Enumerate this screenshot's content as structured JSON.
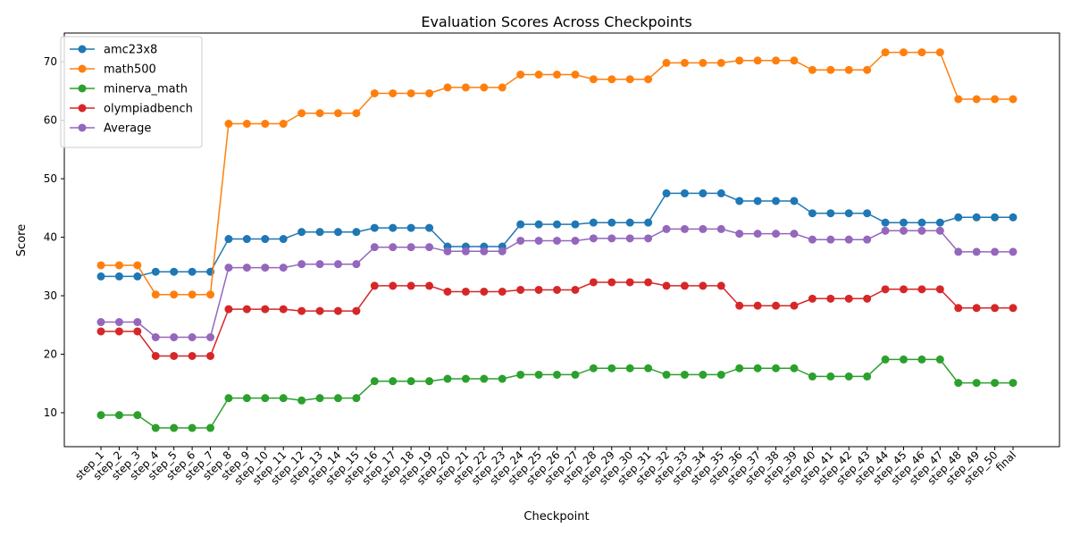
{
  "chart_data": {
    "type": "line",
    "title": "Evaluation Scores Across Checkpoints",
    "xlabel": "Checkpoint",
    "ylabel": "Score",
    "ylim": [
      4.2,
      74.9
    ],
    "yticks": [
      10,
      20,
      30,
      40,
      50,
      60,
      70
    ],
    "grid": false,
    "legend_position": "top-left",
    "categories": [
      "step_1",
      "step_2",
      "step_3",
      "step_4",
      "step_5",
      "step_6",
      "step_7",
      "step_8",
      "step_9",
      "step_10",
      "step_11",
      "step_12",
      "step_13",
      "step_14",
      "step_15",
      "step_16",
      "step_17",
      "step_18",
      "step_19",
      "step_20",
      "step_21",
      "step_22",
      "step_23",
      "step_24",
      "step_25",
      "step_26",
      "step_27",
      "step_28",
      "step_29",
      "step_30",
      "step_31",
      "step_32",
      "step_33",
      "step_34",
      "step_35",
      "step_36",
      "step_37",
      "step_38",
      "step_39",
      "step_40",
      "step_41",
      "step_42",
      "step_43",
      "step_44",
      "step_45",
      "step_46",
      "step_47",
      "step_48",
      "step_49",
      "step_50",
      "final"
    ],
    "series": [
      {
        "name": "amc23x8",
        "color": "#1f77b4",
        "values": [
          33.3,
          33.3,
          33.3,
          34.1,
          34.1,
          34.1,
          34.1,
          39.7,
          39.7,
          39.7,
          39.7,
          40.9,
          40.9,
          40.9,
          40.9,
          41.6,
          41.6,
          41.6,
          41.6,
          38.4,
          38.4,
          38.4,
          38.4,
          42.2,
          42.2,
          42.2,
          42.2,
          42.5,
          42.5,
          42.5,
          42.5,
          47.5,
          47.5,
          47.5,
          47.5,
          46.2,
          46.2,
          46.2,
          46.2,
          44.1,
          44.1,
          44.1,
          44.1,
          42.5,
          42.5,
          42.5,
          42.5,
          43.4,
          43.4,
          43.4,
          43.4
        ]
      },
      {
        "name": "math500",
        "color": "#ff7f0e",
        "values": [
          35.2,
          35.2,
          35.2,
          30.2,
          30.2,
          30.2,
          30.2,
          59.4,
          59.4,
          59.4,
          59.4,
          61.2,
          61.2,
          61.2,
          61.2,
          64.6,
          64.6,
          64.6,
          64.6,
          65.6,
          65.6,
          65.6,
          65.6,
          67.8,
          67.8,
          67.8,
          67.8,
          67.0,
          67.0,
          67.0,
          67.0,
          69.8,
          69.8,
          69.8,
          69.8,
          70.2,
          70.2,
          70.2,
          70.2,
          68.6,
          68.6,
          68.6,
          68.6,
          71.6,
          71.6,
          71.6,
          71.6,
          63.6,
          63.6,
          63.6,
          63.6
        ]
      },
      {
        "name": "minerva_math",
        "color": "#2ca02c",
        "values": [
          9.6,
          9.6,
          9.6,
          7.4,
          7.4,
          7.4,
          7.4,
          12.5,
          12.5,
          12.5,
          12.5,
          12.1,
          12.5,
          12.5,
          12.5,
          15.4,
          15.4,
          15.4,
          15.4,
          15.8,
          15.8,
          15.8,
          15.8,
          16.5,
          16.5,
          16.5,
          16.5,
          17.6,
          17.6,
          17.6,
          17.6,
          16.5,
          16.5,
          16.5,
          16.5,
          17.6,
          17.6,
          17.6,
          17.6,
          16.2,
          16.2,
          16.2,
          16.2,
          19.1,
          19.1,
          19.1,
          19.1,
          15.1,
          15.1,
          15.1,
          15.1
        ]
      },
      {
        "name": "olympiadbench",
        "color": "#d62728",
        "values": [
          23.9,
          23.9,
          23.9,
          19.7,
          19.7,
          19.7,
          19.7,
          27.7,
          27.7,
          27.7,
          27.7,
          27.4,
          27.4,
          27.4,
          27.4,
          31.7,
          31.7,
          31.7,
          31.7,
          30.7,
          30.7,
          30.7,
          30.7,
          31.0,
          31.0,
          31.0,
          31.0,
          32.3,
          32.3,
          32.3,
          32.3,
          31.7,
          31.7,
          31.7,
          31.7,
          28.3,
          28.3,
          28.3,
          28.3,
          29.5,
          29.5,
          29.5,
          29.5,
          31.1,
          31.1,
          31.1,
          31.1,
          27.9,
          27.9,
          27.9,
          27.9
        ]
      },
      {
        "name": "Average",
        "color": "#9467bd",
        "values": [
          25.5,
          25.5,
          25.5,
          22.9,
          22.9,
          22.9,
          22.9,
          34.8,
          34.8,
          34.8,
          34.8,
          35.4,
          35.4,
          35.4,
          35.4,
          38.3,
          38.3,
          38.3,
          38.3,
          37.6,
          37.6,
          37.6,
          37.6,
          39.4,
          39.4,
          39.4,
          39.4,
          39.8,
          39.8,
          39.8,
          39.8,
          41.4,
          41.4,
          41.4,
          41.4,
          40.6,
          40.6,
          40.6,
          40.6,
          39.6,
          39.6,
          39.6,
          39.6,
          41.1,
          41.1,
          41.1,
          41.1,
          37.5,
          37.5,
          37.5,
          37.5
        ]
      }
    ]
  }
}
